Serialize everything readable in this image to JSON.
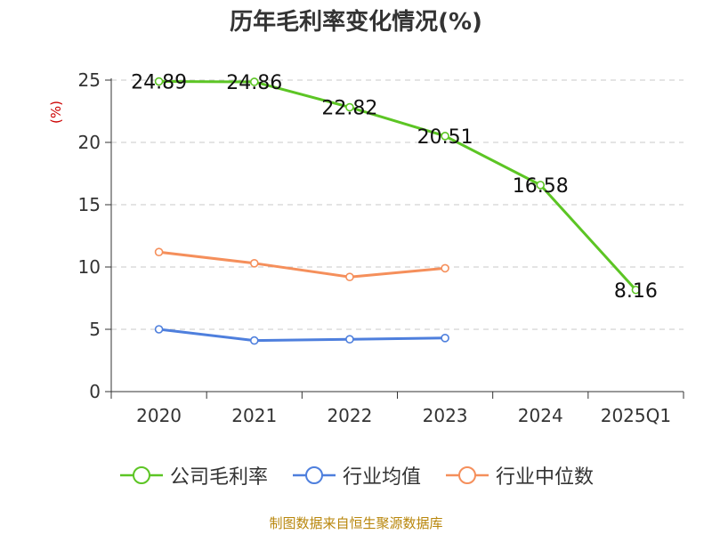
{
  "chart_data": {
    "type": "line",
    "title": "历年毛利率变化情况(%)",
    "ylabel": "(%)",
    "xlabel": "",
    "ylim": [
      0,
      25
    ],
    "yticks": [
      0,
      5,
      10,
      15,
      20,
      25
    ],
    "categories": [
      "2020",
      "2021",
      "2022",
      "2023",
      "2024",
      "2025Q1"
    ],
    "grid": true,
    "legend_position": "bottom",
    "series": [
      {
        "name": "公司毛利率",
        "color": "#5cc524",
        "values": [
          24.89,
          24.86,
          22.82,
          20.51,
          16.58,
          8.16
        ],
        "labels": [
          "24.89",
          "24.86",
          "22.82",
          "20.51",
          "16.58",
          "8.16"
        ]
      },
      {
        "name": "行业均值",
        "color": "#4e7fdd",
        "values": [
          5.0,
          4.1,
          4.2,
          4.3,
          null,
          null
        ]
      },
      {
        "name": "行业中位数",
        "color": "#f58f5b",
        "values": [
          11.2,
          10.3,
          9.2,
          9.9,
          null,
          null
        ]
      }
    ]
  },
  "source": "制图数据来自恒生聚源数据库"
}
